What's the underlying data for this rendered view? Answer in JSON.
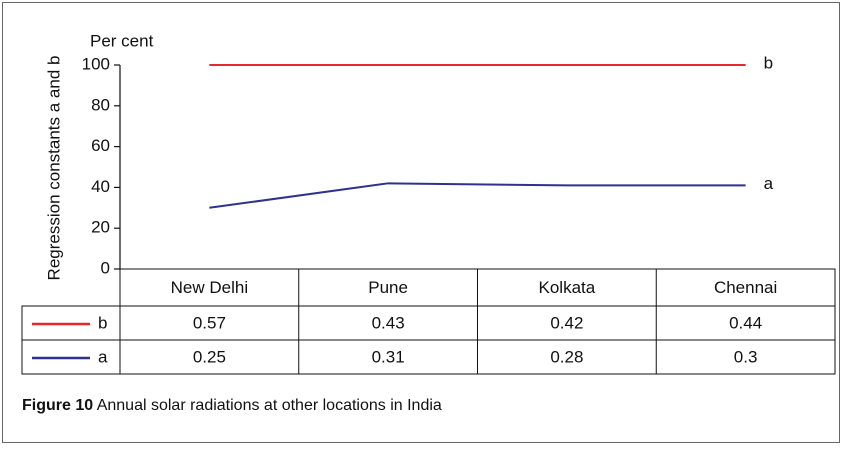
{
  "chart_data": {
    "type": "line",
    "y_label": "Regression constants a and b",
    "y_unit": "Per cent",
    "categories": [
      "New Delhi",
      "Pune",
      "Kolkata",
      "Chennai"
    ],
    "series": [
      {
        "name": "b",
        "color": "#e8262b",
        "values": [
          100,
          100,
          100,
          100
        ]
      },
      {
        "name": "a",
        "color": "#2e3192",
        "values": [
          30,
          42,
          41,
          41
        ]
      }
    ],
    "ylim": [
      0,
      100
    ],
    "yticks": [
      0,
      20,
      40,
      60,
      80,
      100
    ],
    "table": {
      "rows": [
        [
          0.57,
          0.43,
          0.42,
          0.44
        ],
        [
          0.25,
          0.31,
          0.28,
          0.3
        ]
      ]
    }
  },
  "caption": {
    "label": "Figure 10",
    "text": "Annual solar radiations at other locations in India"
  }
}
